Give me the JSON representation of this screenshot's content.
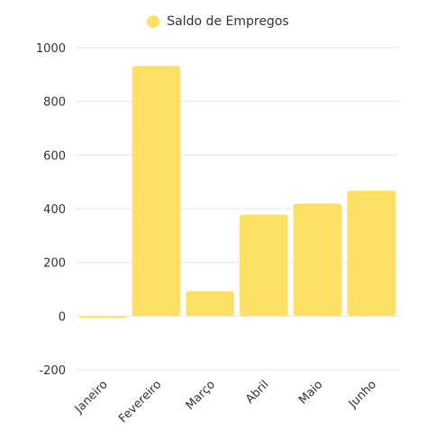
{
  "chart_data": {
    "type": "bar",
    "categories": [
      "Janeiro",
      "Fevereiro",
      "Março",
      "Abril",
      "Maio",
      "Junho"
    ],
    "series": [
      {
        "name": "Saldo de Empregos",
        "values": [
          -5,
          932,
          93,
          378,
          419,
          467
        ],
        "color": "#ffe066"
      }
    ],
    "ylim": [
      -200,
      1000
    ],
    "yticks": [
      "1000",
      "800",
      "600",
      "400",
      "200",
      "0",
      "-200"
    ],
    "grid": true,
    "legend": "top-center"
  }
}
